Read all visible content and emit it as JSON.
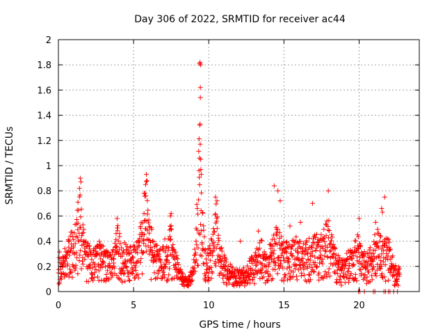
{
  "chart_data": {
    "type": "scatter",
    "title": "Day 306 of 2022, SRMTID for receiver ac44",
    "xlabel": "GPS time / hours",
    "ylabel": "SRMTID / TECUs",
    "xlim": [
      0,
      24
    ],
    "ylim": [
      0,
      2
    ],
    "xticks": [
      {
        "value": 0,
        "label": "0"
      },
      {
        "value": 5,
        "label": "5"
      },
      {
        "value": 10,
        "label": "10"
      },
      {
        "value": 15,
        "label": "15"
      },
      {
        "value": 20,
        "label": "20"
      }
    ],
    "yticks": [
      {
        "value": 0,
        "label": "0"
      },
      {
        "value": 0.2,
        "label": "0.2"
      },
      {
        "value": 0.4,
        "label": "0.4"
      },
      {
        "value": 0.6,
        "label": "0.6"
      },
      {
        "value": 0.8,
        "label": "0.8"
      },
      {
        "value": 1.0,
        "label": "1"
      },
      {
        "value": 1.2,
        "label": "1.2"
      },
      {
        "value": 1.4,
        "label": "1.4"
      },
      {
        "value": 1.6,
        "label": "1.6"
      },
      {
        "value": 1.8,
        "label": "1.8"
      },
      {
        "value": 2.0,
        "label": "2"
      }
    ],
    "grid": true,
    "marker": "plus",
    "series_color": "#ff0000",
    "series": [
      {
        "name": "SRMTID",
        "envelope": [
          [
            0.0,
            0.33
          ],
          [
            0.3,
            0.32
          ],
          [
            0.6,
            0.4
          ],
          [
            0.9,
            0.5
          ],
          [
            1.1,
            0.58
          ],
          [
            1.3,
            0.72
          ],
          [
            1.45,
            0.88
          ],
          [
            1.6,
            0.55
          ],
          [
            1.9,
            0.42
          ],
          [
            2.2,
            0.32
          ],
          [
            2.5,
            0.36
          ],
          [
            2.8,
            0.42
          ],
          [
            3.1,
            0.34
          ],
          [
            3.4,
            0.3
          ],
          [
            3.7,
            0.38
          ],
          [
            3.9,
            0.55
          ],
          [
            4.2,
            0.4
          ],
          [
            4.6,
            0.38
          ],
          [
            5.0,
            0.4
          ],
          [
            5.3,
            0.42
          ],
          [
            5.6,
            0.62
          ],
          [
            5.85,
            0.9
          ],
          [
            6.1,
            0.55
          ],
          [
            6.4,
            0.4
          ],
          [
            6.8,
            0.38
          ],
          [
            7.2,
            0.45
          ],
          [
            7.5,
            0.55
          ],
          [
            7.7,
            0.35
          ],
          [
            8.0,
            0.25
          ],
          [
            8.3,
            0.15
          ],
          [
            8.6,
            0.12
          ],
          [
            8.9,
            0.18
          ],
          [
            9.1,
            0.4
          ],
          [
            9.3,
            1.05
          ],
          [
            9.4,
            1.4
          ],
          [
            9.5,
            0.85
          ],
          [
            9.7,
            0.45
          ],
          [
            10.0,
            0.35
          ],
          [
            10.3,
            0.5
          ],
          [
            10.5,
            0.72
          ],
          [
            10.7,
            0.4
          ],
          [
            11.0,
            0.3
          ],
          [
            11.3,
            0.25
          ],
          [
            11.6,
            0.2
          ],
          [
            12.0,
            0.18
          ],
          [
            12.3,
            0.2
          ],
          [
            12.6,
            0.22
          ],
          [
            12.9,
            0.3
          ],
          [
            13.2,
            0.38
          ],
          [
            13.5,
            0.42
          ],
          [
            13.8,
            0.3
          ],
          [
            14.1,
            0.4
          ],
          [
            14.4,
            0.55
          ],
          [
            14.7,
            0.5
          ],
          [
            15.0,
            0.4
          ],
          [
            15.4,
            0.4
          ],
          [
            15.8,
            0.45
          ],
          [
            16.2,
            0.38
          ],
          [
            16.6,
            0.42
          ],
          [
            17.0,
            0.5
          ],
          [
            17.3,
            0.45
          ],
          [
            17.6,
            0.48
          ],
          [
            17.9,
            0.62
          ],
          [
            18.2,
            0.45
          ],
          [
            18.5,
            0.32
          ],
          [
            18.8,
            0.25
          ],
          [
            19.1,
            0.3
          ],
          [
            19.4,
            0.35
          ],
          [
            19.7,
            0.4
          ],
          [
            19.9,
            0.48
          ],
          [
            20.2,
            0.35
          ],
          [
            20.5,
            0.3
          ],
          [
            20.8,
            0.38
          ],
          [
            21.0,
            0.45
          ],
          [
            21.3,
            0.52
          ],
          [
            21.6,
            0.4
          ],
          [
            21.9,
            0.45
          ],
          [
            22.2,
            0.3
          ],
          [
            22.5,
            0.2
          ],
          [
            22.7,
            0.2
          ]
        ],
        "highlights": [
          [
            9.42,
            1.82
          ],
          [
            9.4,
            1.81
          ],
          [
            9.45,
            1.8
          ],
          [
            9.44,
            1.62
          ],
          [
            9.44,
            1.54
          ],
          [
            9.42,
            1.33
          ],
          [
            9.43,
            1.17
          ],
          [
            9.38,
            1.06
          ],
          [
            9.46,
            1.05
          ],
          [
            9.35,
            0.96
          ],
          [
            9.5,
            0.93
          ],
          [
            1.45,
            0.9
          ],
          [
            1.5,
            0.87
          ],
          [
            1.4,
            0.82
          ],
          [
            5.85,
            0.93
          ],
          [
            5.9,
            0.88
          ],
          [
            5.8,
            0.85
          ],
          [
            14.35,
            0.84
          ],
          [
            14.6,
            0.8
          ],
          [
            17.95,
            0.8
          ],
          [
            21.7,
            0.75
          ],
          [
            10.45,
            0.75
          ],
          [
            10.55,
            0.72
          ],
          [
            14.75,
            0.72
          ],
          [
            5.7,
            0.78
          ],
          [
            1.3,
            0.71
          ],
          [
            16.9,
            0.7
          ],
          [
            20.0,
            0.58
          ],
          [
            21.1,
            0.55
          ],
          [
            21.5,
            0.66
          ],
          [
            21.55,
            0.63
          ],
          [
            3.9,
            0.58
          ],
          [
            7.5,
            0.62
          ],
          [
            7.45,
            0.6
          ],
          [
            12.1,
            0.4
          ],
          [
            13.3,
            0.48
          ],
          [
            15.4,
            0.52
          ],
          [
            16.1,
            0.55
          ]
        ],
        "zeros": [
          19.95,
          20.05,
          20.35,
          20.95,
          21.05,
          21.65,
          21.75,
          21.95,
          22.05,
          22.3,
          22.55
        ]
      }
    ]
  }
}
